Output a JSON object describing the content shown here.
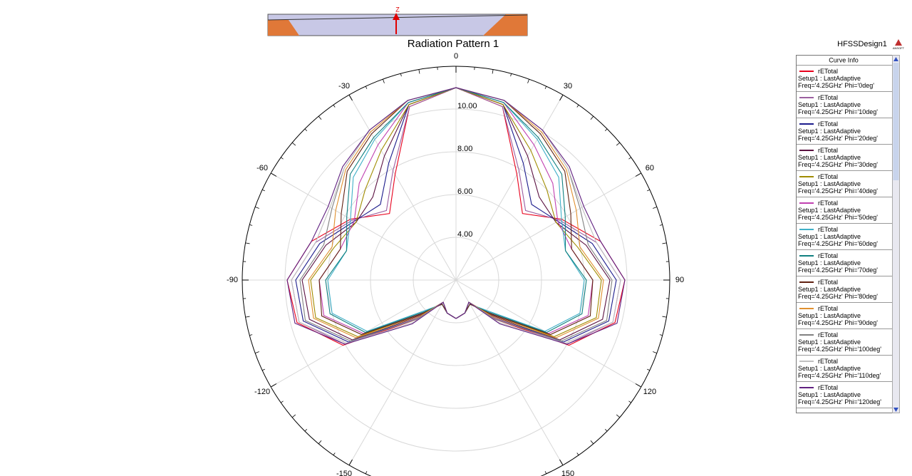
{
  "chart_data": {
    "type": "polar",
    "title": "Radiation Pattern 1",
    "design": "HFSSDesign1",
    "logo": "ANSOFT",
    "axis_label": "Z",
    "legend_title": "Curve Info",
    "rlim": [
      2,
      12
    ],
    "rticks": [
      {
        "value": 4,
        "label": "4.00"
      },
      {
        "value": 6,
        "label": "6.00"
      },
      {
        "value": 8,
        "label": "8.00"
      },
      {
        "value": 10,
        "label": "10.00"
      }
    ],
    "thetaticks": [
      -150,
      -120,
      -90,
      -60,
      -30,
      0,
      30,
      60,
      90,
      120,
      150
    ],
    "grid": true,
    "theta": [
      -180,
      -165,
      -150,
      -135,
      -120,
      -105,
      -90,
      -75,
      -60,
      -45,
      -30,
      -15,
      0,
      15,
      30,
      45,
      60,
      75,
      90,
      105,
      120,
      135,
      150,
      165,
      180
    ],
    "series": [
      {
        "name": "rETotal",
        "setup": "Setup1 : LastAdaptive",
        "label": "Freq='4.25GHz' Phi='0deg'",
        "color": "#e8001c",
        "values": [
          3.8,
          3.6,
          3.2,
          4.6,
          8.1,
          9.7,
          9.9,
          9.0,
          7.7,
          6.4,
          7.7,
          10.4,
          11.0,
          10.4,
          7.7,
          6.4,
          7.7,
          9.0,
          9.9,
          9.7,
          8.1,
          4.6,
          3.2,
          3.6,
          3.8
        ]
      },
      {
        "name": "rETotal",
        "setup": "Setup1 : LastAdaptive",
        "label": "Freq='4.25GHz' Phi='10deg'",
        "color": "#9b5fa0",
        "values": [
          3.8,
          3.6,
          3.2,
          4.5,
          8.0,
          9.6,
          9.7,
          8.8,
          7.6,
          6.6,
          7.9,
          10.4,
          11.0,
          10.4,
          7.9,
          6.6,
          7.6,
          8.8,
          9.7,
          9.6,
          8.0,
          4.5,
          3.2,
          3.6,
          3.8
        ]
      },
      {
        "name": "rETotal",
        "setup": "Setup1 : LastAdaptive",
        "label": "Freq='4.25GHz' Phi='20deg'",
        "color": "#1c1c8c",
        "values": [
          3.8,
          3.6,
          3.2,
          4.4,
          7.8,
          9.4,
          9.5,
          8.6,
          7.5,
          7.0,
          8.3,
          10.5,
          11.0,
          10.5,
          8.3,
          7.0,
          7.5,
          8.6,
          9.5,
          9.4,
          7.8,
          4.4,
          3.2,
          3.6,
          3.8
        ]
      },
      {
        "name": "rETotal",
        "setup": "Setup1 : LastAdaptive",
        "label": "Freq='4.25GHz' Phi='30deg'",
        "color": "#5a1040",
        "values": [
          3.8,
          3.6,
          3.2,
          4.3,
          7.6,
          9.1,
          9.2,
          8.3,
          7.4,
          7.5,
          8.7,
          10.5,
          11.0,
          10.5,
          8.7,
          7.5,
          7.4,
          8.3,
          9.2,
          9.1,
          7.6,
          4.3,
          3.2,
          3.6,
          3.8
        ]
      },
      {
        "name": "rETotal",
        "setup": "Setup1 : LastAdaptive",
        "label": "Freq='4.25GHz' Phi='40deg'",
        "color": "#a08c00",
        "values": [
          3.8,
          3.6,
          3.3,
          4.2,
          7.3,
          8.8,
          8.8,
          7.9,
          7.4,
          8.0,
          9.0,
          10.5,
          11.0,
          10.5,
          9.0,
          8.0,
          7.4,
          7.9,
          8.8,
          8.8,
          7.3,
          4.2,
          3.3,
          3.6,
          3.8
        ]
      },
      {
        "name": "rETotal",
        "setup": "Setup1 : LastAdaptive",
        "label": "Freq='4.25GHz' Phi='50deg'",
        "color": "#c040b0",
        "values": [
          3.8,
          3.6,
          3.3,
          4.1,
          7.0,
          8.4,
          8.4,
          7.6,
          7.5,
          8.4,
          9.3,
          10.6,
          11.0,
          10.6,
          9.3,
          8.4,
          7.5,
          7.6,
          8.4,
          8.4,
          7.0,
          4.1,
          3.3,
          3.6,
          3.8
        ]
      },
      {
        "name": "rETotal",
        "setup": "Setup1 : LastAdaptive",
        "label": "Freq='4.25GHz' Phi='60deg'",
        "color": "#40b0c8",
        "values": [
          3.8,
          3.6,
          3.3,
          4.0,
          6.8,
          8.0,
          8.0,
          7.3,
          7.7,
          8.8,
          9.6,
          10.6,
          11.0,
          10.6,
          9.6,
          8.8,
          7.7,
          7.3,
          8.0,
          8.0,
          6.8,
          4.0,
          3.3,
          3.6,
          3.8
        ]
      },
      {
        "name": "rETotal",
        "setup": "Setup1 : LastAdaptive",
        "label": "Freq='4.25GHz' Phi='70deg'",
        "color": "#108080",
        "values": [
          3.8,
          3.6,
          3.3,
          4.1,
          6.9,
          8.1,
          8.1,
          7.3,
          7.9,
          9.0,
          9.7,
          10.6,
          11.0,
          10.6,
          9.7,
          9.0,
          7.9,
          7.3,
          8.1,
          8.1,
          6.9,
          4.1,
          3.3,
          3.6,
          3.8
        ]
      },
      {
        "name": "rETotal",
        "setup": "Setup1 : LastAdaptive",
        "label": "Freq='4.25GHz' Phi='80deg'",
        "color": "#602010",
        "values": [
          3.8,
          3.6,
          3.3,
          4.2,
          7.1,
          8.5,
          8.4,
          7.6,
          8.2,
          9.2,
          9.9,
          10.7,
          11.0,
          10.7,
          9.9,
          9.2,
          8.2,
          7.6,
          8.4,
          8.5,
          7.1,
          4.2,
          3.3,
          3.6,
          3.8
        ]
      },
      {
        "name": "rETotal",
        "setup": "Setup1 : LastAdaptive",
        "label": "Freq='4.25GHz' Phi='90deg'",
        "color": "#e09030",
        "values": [
          3.8,
          3.6,
          3.2,
          4.4,
          7.4,
          8.9,
          8.9,
          8.0,
          8.5,
          9.3,
          10.0,
          10.7,
          11.0,
          10.7,
          10.0,
          9.3,
          8.5,
          8.0,
          8.9,
          8.9,
          7.4,
          4.4,
          3.2,
          3.6,
          3.8
        ]
      },
      {
        "name": "rETotal",
        "setup": "Setup1 : LastAdaptive",
        "label": "Freq='4.25GHz' Phi='100deg'",
        "color": "#808080",
        "values": [
          3.8,
          3.6,
          3.2,
          4.6,
          7.7,
          9.3,
          9.3,
          8.4,
          8.7,
          9.4,
          10.1,
          10.7,
          11.0,
          10.7,
          10.1,
          9.4,
          8.7,
          8.4,
          9.3,
          9.3,
          7.7,
          4.6,
          3.2,
          3.6,
          3.8
        ]
      },
      {
        "name": "rETotal",
        "setup": "Setup1 : LastAdaptive",
        "label": "Freq='4.25GHz' Phi='110deg'",
        "color": "#c0c0c0",
        "values": [
          3.8,
          3.6,
          3.2,
          4.8,
          7.9,
          9.6,
          9.7,
          8.8,
          8.8,
          9.4,
          10.1,
          10.7,
          11.0,
          10.7,
          10.1,
          9.4,
          8.8,
          8.8,
          9.7,
          9.6,
          7.9,
          4.8,
          3.2,
          3.6,
          3.8
        ]
      },
      {
        "name": "rETotal",
        "setup": "Setup1 : LastAdaptive",
        "label": "Freq='4.25GHz' Phi='120deg'",
        "color": "#602080",
        "values": [
          3.8,
          3.6,
          3.2,
          4.9,
          8.0,
          9.8,
          9.9,
          9.0,
          8.9,
          9.5,
          10.1,
          10.7,
          11.0,
          10.7,
          10.1,
          9.5,
          8.9,
          9.0,
          9.9,
          9.8,
          8.0,
          4.9,
          3.2,
          3.6,
          3.8
        ]
      }
    ]
  }
}
